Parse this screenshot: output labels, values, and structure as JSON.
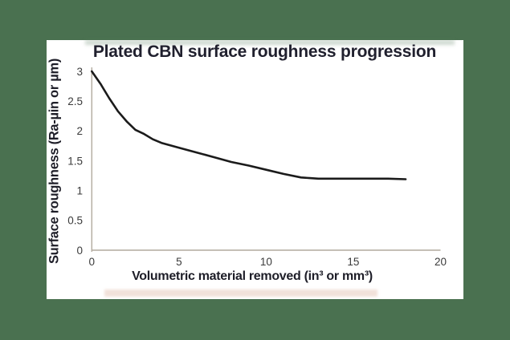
{
  "window": {
    "background_color": "#4a7150",
    "chart_background": "#ffffff"
  },
  "chart_data": {
    "type": "line",
    "title": "Plated CBN surface roughness progression",
    "xlabel": "Volumetric material removed (in³ or mm³)",
    "ylabel": "Surface roughness (Ra-µin or µm)",
    "xlim": [
      0,
      20
    ],
    "ylim": [
      0,
      3
    ],
    "xtick_values": [
      0,
      5,
      10,
      15,
      20
    ],
    "xtick_labels": [
      "0",
      "5",
      "10",
      "15",
      "20"
    ],
    "ytick_values": [
      0,
      0.5,
      1,
      1.5,
      2,
      2.5,
      3
    ],
    "ytick_labels": [
      "0",
      "0.5",
      "1",
      "1.5",
      "2",
      "2.5",
      "3"
    ],
    "grid": false,
    "legend_position": "none",
    "line_color": "#1b1b1b",
    "axis_color": "#b2aa9e",
    "tick_color": "#3a3a3a",
    "title_color": "#20202e",
    "series": [
      {
        "name": "Plated CBN surface roughness",
        "x": [
          0,
          0.5,
          1,
          1.5,
          2,
          2.5,
          3,
          3.5,
          4,
          4.5,
          5,
          6,
          7,
          8,
          9,
          10,
          11,
          12,
          12.5,
          13,
          14,
          15,
          16,
          17,
          18
        ],
        "y": [
          3.0,
          2.79,
          2.55,
          2.33,
          2.16,
          2.02,
          1.95,
          1.86,
          1.8,
          1.76,
          1.72,
          1.64,
          1.56,
          1.48,
          1.42,
          1.35,
          1.28,
          1.22,
          1.21,
          1.2,
          1.2,
          1.2,
          1.2,
          1.2,
          1.19
        ]
      }
    ]
  }
}
